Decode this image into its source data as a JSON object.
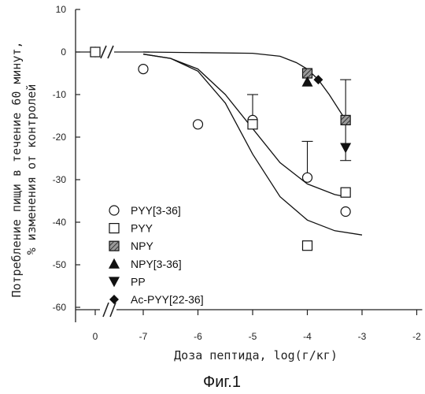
{
  "chart_data": {
    "type": "scatter",
    "xlabel": "Доза пептида, log(г/кг)",
    "ylabel_lines": [
      "Потребление пищи в течение 60 минут,",
      "% изменения от контролей"
    ],
    "x_ticks": [
      {
        "value": 0,
        "label": "0"
      },
      {
        "value": -7,
        "label": "-7"
      },
      {
        "value": -6,
        "label": "-6"
      },
      {
        "value": -5,
        "label": "-5"
      },
      {
        "value": -4,
        "label": "-4"
      },
      {
        "value": -3,
        "label": "-3"
      },
      {
        "value": -2,
        "label": "-2"
      }
    ],
    "y_ticks": [
      10,
      0,
      -10,
      -20,
      -30,
      -40,
      -50,
      -60
    ],
    "xlim": [
      -7.9,
      -1.9
    ],
    "ylim": [
      -60,
      10
    ],
    "axis_break": true,
    "series": [
      {
        "name": "PYY[3-36]",
        "marker": "circle",
        "points": [
          [
            0,
            0
          ],
          [
            -7.0,
            -4
          ],
          [
            -6.0,
            -17
          ],
          [
            -5.0,
            -16
          ],
          [
            -4.0,
            -29.5
          ],
          [
            -3.3,
            -37.5
          ]
        ]
      },
      {
        "name": "PYY",
        "marker": "square",
        "points": [
          [
            0,
            0
          ],
          [
            -5.0,
            -17
          ],
          [
            -4.0,
            -45.5
          ],
          [
            -3.3,
            -33
          ]
        ]
      },
      {
        "name": "NPY",
        "marker": "hatched-square",
        "points": [
          [
            -4.0,
            -5
          ],
          [
            -3.3,
            -16
          ]
        ]
      },
      {
        "name": "NPY[3-36]",
        "marker": "triangle-up",
        "points": [
          [
            -4.0,
            -7
          ]
        ]
      },
      {
        "name": "PP",
        "marker": "triangle-down",
        "points": [
          [
            -3.3,
            -22.5
          ]
        ]
      },
      {
        "name": "Ac-PYY[22-36]",
        "marker": "diamond",
        "points": [
          [
            -3.8,
            -6.5
          ]
        ]
      }
    ],
    "error_bars": [
      {
        "x": -5.0,
        "y": -16,
        "low": -16,
        "high": -10
      },
      {
        "x": -4.0,
        "y": -29.5,
        "low": -29.5,
        "high": -21
      },
      {
        "x": -3.3,
        "y": -16,
        "low": -25.5,
        "high": -6.5
      }
    ],
    "fit_curves": [
      {
        "points": [
          [
            -7.0,
            -0.5
          ],
          [
            -6.5,
            -1.5
          ],
          [
            -6.0,
            -4
          ],
          [
            -5.5,
            -10
          ],
          [
            -5.0,
            -18
          ],
          [
            -4.5,
            -26
          ],
          [
            -4.0,
            -31
          ],
          [
            -3.5,
            -33.5
          ],
          [
            -3.3,
            -34
          ]
        ]
      },
      {
        "points": [
          [
            -7.0,
            -0.5
          ],
          [
            -6.5,
            -1.5
          ],
          [
            -6.0,
            -4.5
          ],
          [
            -5.5,
            -12
          ],
          [
            -5.0,
            -24
          ],
          [
            -4.5,
            -34
          ],
          [
            -4.0,
            -39.5
          ],
          [
            -3.5,
            -42
          ],
          [
            -3.0,
            -43
          ]
        ]
      },
      {
        "points": [
          [
            -7.0,
            0
          ],
          [
            -5.0,
            -0.3
          ],
          [
            -4.5,
            -1
          ],
          [
            -4.2,
            -2.5
          ],
          [
            -4.0,
            -4
          ],
          [
            -3.8,
            -6.5
          ],
          [
            -3.6,
            -10
          ],
          [
            -3.4,
            -14
          ],
          [
            -3.3,
            -16
          ]
        ]
      }
    ],
    "legend_position": "bottom-left"
  },
  "caption": "Фиг.1"
}
